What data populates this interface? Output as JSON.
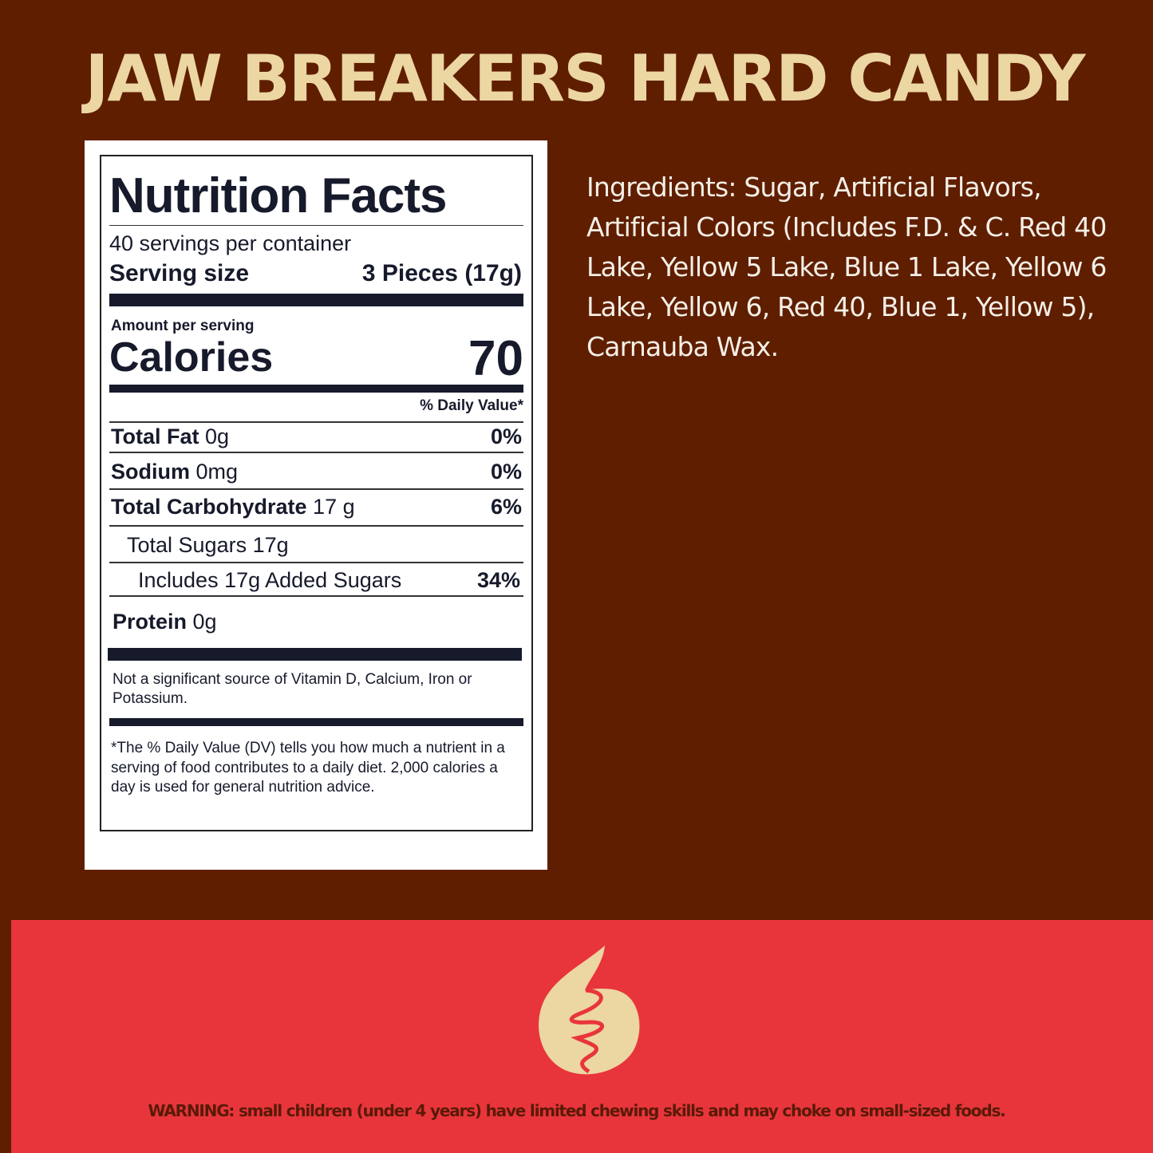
{
  "title": "JAW BREAKERS HARD CANDY",
  "nutrition": {
    "heading": "Nutrition Facts",
    "servings": "40 servings per container",
    "serving_size_label": "Serving size",
    "serving_size_value": "3 Pieces (17g)",
    "amount_per_serving": "Amount per serving",
    "calories_label": "Calories",
    "calories_value": "70",
    "dv_header": "% Daily Value*",
    "rows": [
      {
        "label": "Total Fat",
        "amount": "0g",
        "dv": "0%"
      },
      {
        "label": "Sodium",
        "amount": "0mg",
        "dv": "0%"
      },
      {
        "label": "Total Carbohydrate",
        "amount": "17 g",
        "dv": "6%"
      },
      {
        "label": "Total Sugars 17g",
        "amount": "",
        "dv": ""
      },
      {
        "label": "Includes 17g Added Sugars",
        "amount": "",
        "dv": "34%"
      },
      {
        "label": "Protein",
        "amount": "0g",
        "dv": ""
      }
    ],
    "not_significant": "Not a significant source of Vitamin D, Calcium, Iron or Potassium.",
    "footnote": "*The % Daily Value (DV) tells you how much a nutrient in a serving of food contributes to a daily diet. 2,000 calories a day is used for general nutrition advice."
  },
  "ingredients": "Ingredients:  Sugar, Artificial Flavors, Artificial Colors (Includes F.D. & C. Red 40 Lake, Yellow 5 Lake, Blue 1 Lake, Yellow 6 Lake, Yellow 6, Red 40, Blue 1, Yellow 5), Carnauba Wax.",
  "warning": "WARNING: small children (under 4 years) have limited chewing skills and may choke on small-sized foods.",
  "colors": {
    "background": "#5f1e00",
    "accent": "#ecd6a2",
    "banner": "#e8353b"
  },
  "logo_icon": "thumbs-up-icon"
}
